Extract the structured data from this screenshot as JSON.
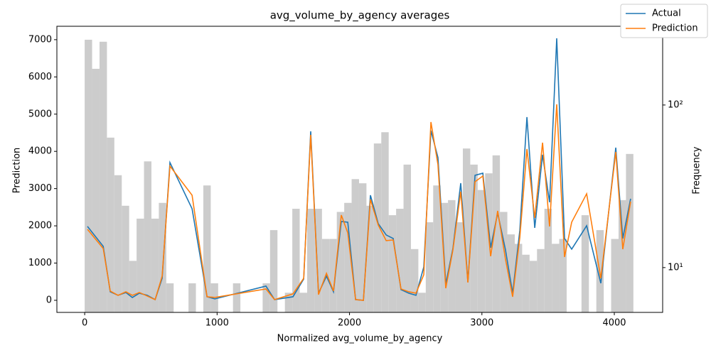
{
  "chart_data": {
    "type": "line",
    "title": "avg_volume_by_agency averages",
    "xlabel": "Normalized avg_volume_by_agency",
    "ylabel": "Prediction",
    "y2label": "Frequency",
    "xlim": [
      -210,
      4365
    ],
    "ylim": [
      -325,
      7360
    ],
    "y2lim": [
      5.3,
      305
    ],
    "y2scale": "log",
    "xticks": [
      0,
      1000,
      2000,
      3000,
      4000
    ],
    "yticks": [
      0,
      1000,
      2000,
      3000,
      4000,
      5000,
      6000,
      7000
    ],
    "y2ticks": [
      {
        "value": 10,
        "label": "10¹"
      },
      {
        "value": 100,
        "label": "10²"
      }
    ],
    "legend": "upper right",
    "x": [
      21,
      140,
      193,
      252,
      311,
      360,
      413,
      472,
      532,
      585,
      644,
      811,
      924,
      983,
      1369,
      1434,
      1573,
      1654,
      1707,
      1766,
      1826,
      1879,
      1938,
      1987,
      2046,
      2105,
      2158,
      2217,
      2277,
      2330,
      2389,
      2448,
      2502,
      2561,
      2615,
      2668,
      2727,
      2781,
      2840,
      2894,
      2948,
      3007,
      3066,
      3119,
      3178,
      3232,
      3286,
      3340,
      3399,
      3458,
      3511,
      3565,
      3624,
      3678,
      3791,
      3898,
      4011,
      4064,
      4123
    ],
    "series": [
      {
        "name": "Actual",
        "color": "#1f77b4",
        "values": [
          1984,
          1450,
          229,
          134,
          210,
          76,
          191,
          134,
          19,
          591,
          3700,
          2460,
          95,
          38,
          381,
          19,
          95,
          572,
          4539,
          191,
          648,
          229,
          2117,
          2098,
          19,
          0,
          2823,
          2060,
          1755,
          1659,
          286,
          191,
          134,
          896,
          4558,
          3834,
          439,
          1392,
          3147,
          496,
          3357,
          3414,
          1411,
          2346,
          1354,
          191,
          1869,
          4921,
          1946,
          3910,
          2632,
          7038,
          1659,
          1373,
          2003,
          458,
          4101,
          1659,
          2727
        ]
      },
      {
        "name": "Prediction",
        "color": "#ff7f0e",
        "values": [
          1907,
          1392,
          248,
          134,
          229,
          134,
          210,
          115,
          19,
          648,
          3605,
          2823,
          95,
          76,
          305,
          19,
          172,
          591,
          4444,
          153,
          725,
          248,
          2289,
          1812,
          19,
          0,
          2708,
          2022,
          1602,
          1621,
          305,
          229,
          191,
          687,
          4787,
          3643,
          324,
          1354,
          2918,
          477,
          3185,
          3338,
          1183,
          2403,
          1106,
          95,
          1678,
          4063,
          2213,
          4234,
          1984,
          5264,
          1163,
          2098,
          2861,
          591,
          3986,
          1373,
          2651
        ]
      }
    ],
    "histogram": {
      "type": "histogram",
      "axis": "y2",
      "color": "#cccccc",
      "bins": [
        0,
        56,
        112,
        168,
        224,
        280,
        336,
        392,
        448,
        504,
        560,
        616,
        672,
        728,
        784,
        840,
        896,
        952,
        1008,
        1064,
        1120,
        1176,
        1232,
        1288,
        1344,
        1400,
        1456,
        1512,
        1568,
        1624,
        1680,
        1736,
        1792,
        1848,
        1904,
        1960,
        2016,
        2072,
        2128,
        2184,
        2240,
        2296,
        2352,
        2408,
        2464,
        2520,
        2576,
        2632,
        2688,
        2744,
        2800,
        2856,
        2912,
        2968,
        3024,
        3080,
        3136,
        3192,
        3248,
        3304,
        3360,
        3416,
        3472,
        3528,
        3584,
        3640,
        3696,
        3752,
        3808,
        3864,
        3920,
        3976,
        4032,
        4088,
        4144
      ],
      "values": [
        252,
        167,
        245,
        63,
        37,
        24,
        11,
        20,
        45,
        20,
        25,
        8,
        0,
        0,
        8,
        0,
        32,
        8,
        0,
        0,
        8,
        0,
        0,
        0,
        8,
        17,
        0,
        7,
        23,
        7,
        23,
        23,
        15,
        15,
        22,
        25,
        35,
        33,
        24,
        58,
        68,
        21,
        23,
        43,
        13,
        7,
        19,
        32,
        25,
        26,
        19,
        54,
        43,
        30,
        38,
        49,
        22,
        16,
        14,
        12,
        11,
        13,
        23,
        14,
        15,
        0,
        0,
        21,
        0,
        17,
        0,
        15,
        26,
        50
      ]
    }
  }
}
